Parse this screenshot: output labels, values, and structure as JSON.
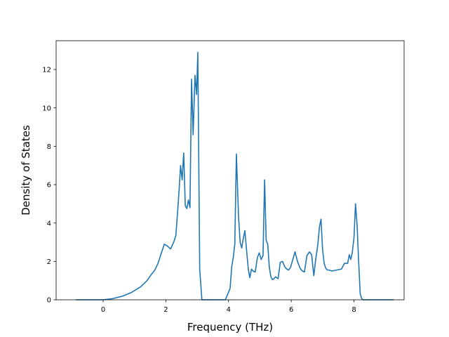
{
  "chart_data": {
    "type": "line",
    "title": "",
    "xlabel": "Frequency (THz)",
    "ylabel": "Density of States",
    "xlim": [
      -1.5,
      9.6
    ],
    "ylim": [
      0,
      13.5
    ],
    "xticks": [
      "0",
      "2",
      "4",
      "6",
      "8"
    ],
    "yticks": [
      "0",
      "2",
      "4",
      "6",
      "8",
      "10",
      "12"
    ],
    "grid": false,
    "legend": "none",
    "series": [
      {
        "color": "#1f77b4",
        "x": [
          -0.85,
          0.0,
          0.3,
          0.6,
          0.9,
          1.2,
          1.4,
          1.55,
          1.65,
          1.75,
          1.85,
          1.95,
          2.05,
          2.15,
          2.25,
          2.32,
          2.38,
          2.43,
          2.47,
          2.52,
          2.57,
          2.62,
          2.67,
          2.72,
          2.77,
          2.82,
          2.87,
          2.93,
          2.98,
          3.02,
          3.08,
          3.15,
          3.5,
          3.9,
          4.05,
          4.1,
          4.15,
          4.2,
          4.25,
          4.32,
          4.37,
          4.42,
          4.47,
          4.52,
          4.58,
          4.63,
          4.68,
          4.73,
          4.78,
          4.85,
          4.92,
          4.98,
          5.04,
          5.1,
          5.15,
          5.2,
          5.25,
          5.3,
          5.35,
          5.4,
          5.45,
          5.5,
          5.58,
          5.65,
          5.72,
          5.8,
          5.86,
          5.92,
          5.98,
          6.05,
          6.12,
          6.2,
          6.28,
          6.35,
          6.42,
          6.5,
          6.58,
          6.65,
          6.72,
          6.78,
          6.85,
          6.9,
          6.95,
          7.0,
          7.05,
          7.1,
          7.15,
          7.2,
          7.3,
          7.45,
          7.6,
          7.7,
          7.8,
          7.85,
          7.9,
          7.95,
          8.0,
          8.05,
          8.1,
          8.15,
          8.2,
          8.25,
          8.3,
          8.4,
          8.6,
          9.25
        ],
        "y": [
          0.0,
          0.0,
          0.06,
          0.18,
          0.38,
          0.68,
          1.0,
          1.35,
          1.55,
          1.9,
          2.4,
          2.9,
          2.8,
          2.65,
          3.0,
          3.35,
          4.7,
          5.9,
          7.0,
          6.25,
          7.65,
          4.9,
          4.75,
          5.2,
          4.8,
          11.5,
          8.6,
          11.7,
          10.7,
          12.9,
          1.6,
          0.0,
          0.0,
          0.0,
          0.6,
          1.7,
          2.2,
          2.9,
          7.6,
          4.3,
          3.0,
          2.7,
          3.2,
          3.6,
          2.5,
          1.6,
          1.15,
          1.6,
          1.5,
          1.45,
          2.2,
          2.45,
          2.1,
          2.3,
          6.25,
          3.1,
          2.9,
          1.7,
          1.2,
          1.05,
          1.1,
          1.2,
          1.1,
          1.95,
          2.0,
          1.7,
          1.6,
          1.55,
          1.7,
          2.1,
          2.5,
          2.0,
          1.65,
          1.5,
          1.45,
          2.3,
          2.5,
          2.35,
          1.25,
          2.1,
          2.9,
          3.8,
          4.2,
          2.6,
          1.9,
          1.65,
          1.55,
          1.55,
          1.5,
          1.55,
          1.6,
          1.9,
          1.9,
          2.35,
          2.1,
          2.5,
          3.2,
          5.0,
          3.9,
          2.0,
          0.3,
          0.05,
          0.0,
          0.0,
          0.0,
          0.0
        ]
      }
    ]
  }
}
